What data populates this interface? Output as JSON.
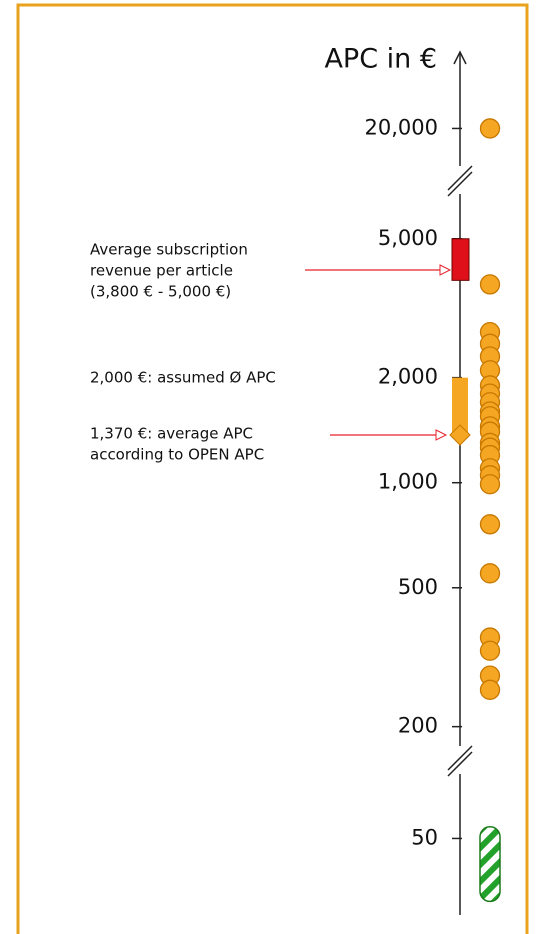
{
  "chart_data": {
    "type": "strip",
    "title": "APC in €",
    "log_scale": true,
    "segments": [
      {
        "ylim": [
          16000,
          30000
        ],
        "yticks": [
          {
            "value": 20000,
            "label": "20,000"
          }
        ]
      },
      {
        "ylim": [
          180,
          6500
        ],
        "yticks": [
          {
            "value": 5000,
            "label": "5,000"
          },
          {
            "value": 2000,
            "label": "2,000"
          },
          {
            "value": 1000,
            "label": "1,000"
          },
          500,
          200
        ]
      },
      {
        "ylim": [
          30,
          75
        ],
        "yticks": [
          50
        ]
      }
    ],
    "series": [
      {
        "color": "#f5a623",
        "values": [
          20000,
          3700,
          2700,
          2500,
          2300,
          2100,
          1900,
          1800,
          1700,
          1600,
          1550,
          1450,
          1400,
          1300,
          1260,
          1200,
          1100,
          1050,
          990,
          760,
          550,
          360,
          330,
          280,
          255
        ]
      }
    ],
    "ranges": [
      {
        "low": 3800,
        "high": 5000,
        "color": "#e0101a"
      },
      {
        "low": 1370,
        "high": 2000,
        "color": "#f5a623"
      },
      {
        "low": 33,
        "high": 54,
        "color": "#22a22a"
      }
    ],
    "annotations": [
      {
        "lines": [
          "Average subscription",
          "revenue per article",
          "(3,800 € - 5,000 €)"
        ]
      },
      {
        "lines": [
          "2,000 €: assumed Ø APC"
        ]
      },
      {
        "lines": [
          "1,370 €: average APC",
          "according to OPEN APC"
        ]
      }
    ]
  }
}
